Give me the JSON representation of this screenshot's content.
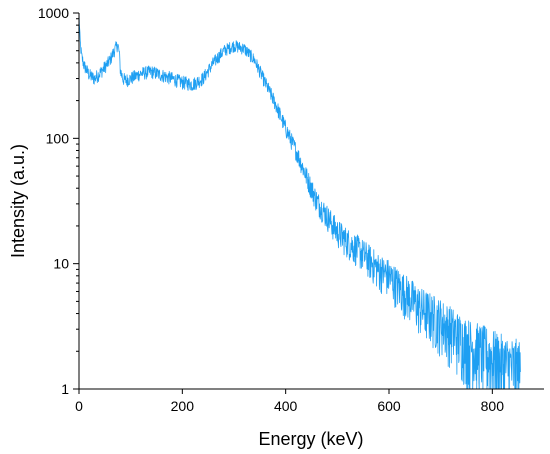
{
  "chart_data": {
    "type": "line",
    "title": "",
    "xlabel": "Energy (keV)",
    "ylabel": "Intensity (a.u.)",
    "xlim": [
      0,
      900
    ],
    "ylim": [
      1,
      1000
    ],
    "y_scale": "log",
    "grid": false,
    "legend": "none",
    "x_ticks": [
      0,
      200,
      400,
      600,
      800
    ],
    "x_tick_labels": [
      "0",
      "200",
      "400",
      "600",
      "800"
    ],
    "y_ticks": [
      1,
      10,
      100,
      1000
    ],
    "y_tick_labels": [
      "1",
      "10",
      "100",
      "1000"
    ],
    "series": [
      {
        "color": "#1e9ff2",
        "x": [
          0,
          2,
          5,
          10,
          20,
          30,
          40,
          50,
          60,
          70,
          75,
          78,
          80,
          85,
          90,
          100,
          120,
          140,
          160,
          180,
          200,
          220,
          240,
          260,
          280,
          300,
          320,
          340,
          360,
          380,
          400,
          420,
          440,
          460,
          480,
          500,
          520,
          540,
          560,
          580,
          600,
          620,
          640,
          660,
          680,
          700,
          720,
          740,
          760,
          780,
          800,
          820,
          840,
          855
        ],
        "y": [
          1000,
          600,
          450,
          380,
          320,
          300,
          330,
          370,
          420,
          520,
          560,
          480,
          350,
          300,
          290,
          300,
          330,
          340,
          320,
          300,
          280,
          270,
          300,
          400,
          500,
          550,
          520,
          420,
          280,
          190,
          120,
          80,
          50,
          32,
          24,
          18,
          15,
          13,
          11,
          9,
          8,
          6.5,
          5.5,
          4.5,
          4,
          3.5,
          3,
          2.5,
          2.2,
          2,
          1.8,
          1.6,
          1.5,
          1.4
        ]
      }
    ]
  }
}
